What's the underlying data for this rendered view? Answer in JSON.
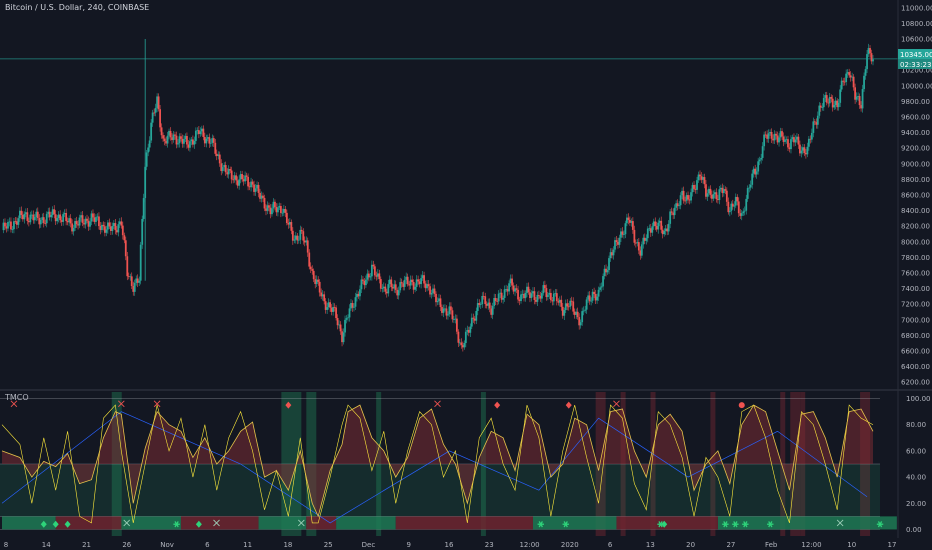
{
  "header": {
    "symbol_title": "Bitcoin / U.S. Dollar, 240, COINBASE"
  },
  "indicator": {
    "name": "TMCO"
  },
  "price_badge": {
    "value": "10345.00",
    "countdown": "02:33:23"
  },
  "colors": {
    "background": "#131722",
    "up_candle": "#26a69a",
    "down_candle": "#ef5350",
    "price_line": "#26a69a",
    "osc_line": "#ffeb3b",
    "osc_fill": "#7a2b33",
    "signal_line": "#2962ff",
    "band_green": "#1f7a55",
    "band_red": "#6e2630",
    "marker_green": "#2ed47a",
    "marker_red": "#ef5350"
  },
  "chart_data": [
    {
      "type": "candlestick",
      "title": "Bitcoin / U.S. Dollar, 240, COINBASE",
      "ylim": [
        6100,
        11100
      ],
      "y_ticks": [
        "11000.00",
        "10800.00",
        "10600.00",
        "10400.00",
        "10200.00",
        "10000.00",
        "9800.00",
        "9600.00",
        "9400.00",
        "9200.00",
        "9000.00",
        "8800.00",
        "8600.00",
        "8400.00",
        "8200.00",
        "8000.00",
        "7800.00",
        "7600.00",
        "7400.00",
        "7200.00",
        "7000.00",
        "6800.00",
        "6600.00",
        "6400.00",
        "6200.00"
      ],
      "x_ticks": [
        "8",
        "14",
        "21",
        "26",
        "Nov",
        "6",
        "11",
        "18",
        "25",
        "Dec",
        "9",
        "16",
        "23",
        "12:00",
        "2020",
        "6",
        "13",
        "20",
        "27",
        "Feb",
        "12:00",
        "10",
        "17"
      ],
      "last_price": 10345.0,
      "close_path": [
        [
          0,
          8150
        ],
        [
          4,
          8350
        ],
        [
          6,
          8280
        ],
        [
          9,
          8350
        ],
        [
          12,
          8220
        ],
        [
          15,
          8300
        ],
        [
          18,
          8150
        ],
        [
          20,
          8250
        ],
        [
          21,
          7600
        ],
        [
          22,
          7450
        ],
        [
          23,
          7500
        ],
        [
          24,
          9000
        ],
        [
          25,
          9500
        ],
        [
          26,
          9800
        ],
        [
          27,
          9300
        ],
        [
          29,
          9350
        ],
        [
          31,
          9250
        ],
        [
          33,
          9400
        ],
        [
          35,
          9300
        ],
        [
          36,
          9100
        ],
        [
          38,
          8850
        ],
        [
          40,
          8800
        ],
        [
          42,
          8750
        ],
        [
          43,
          8600
        ],
        [
          44,
          8500
        ],
        [
          45,
          8400
        ],
        [
          47,
          8450
        ],
        [
          48,
          8200
        ],
        [
          49,
          8050
        ],
        [
          50,
          8100
        ],
        [
          51,
          7950
        ],
        [
          52,
          7600
        ],
        [
          53,
          7400
        ],
        [
          54,
          7250
        ],
        [
          55,
          7150
        ],
        [
          56,
          7050
        ],
        [
          57,
          6800
        ],
        [
          58,
          7050
        ],
        [
          59,
          7250
        ],
        [
          60,
          7400
        ],
        [
          61,
          7500
        ],
        [
          62,
          7700
        ],
        [
          63,
          7500
        ],
        [
          64,
          7400
        ],
        [
          65,
          7450
        ],
        [
          66,
          7350
        ],
        [
          67,
          7500
        ],
        [
          68,
          7450
        ],
        [
          70,
          7500
        ],
        [
          72,
          7400
        ],
        [
          73,
          7200
        ],
        [
          74,
          7150
        ],
        [
          75,
          7100
        ],
        [
          76,
          6950
        ],
        [
          77,
          6650
        ],
        [
          78,
          6800
        ],
        [
          79,
          7050
        ],
        [
          80,
          7200
        ],
        [
          81,
          7250
        ],
        [
          82,
          7150
        ],
        [
          84,
          7350
        ],
        [
          85,
          7450
        ],
        [
          87,
          7300
        ],
        [
          89,
          7350
        ],
        [
          90,
          7250
        ],
        [
          91,
          7400
        ],
        [
          92,
          7300
        ],
        [
          93,
          7250
        ],
        [
          94,
          7150
        ],
        [
          95,
          7200
        ],
        [
          96,
          7100
        ],
        [
          97,
          7000
        ],
        [
          98,
          7200
        ],
        [
          99,
          7350
        ],
        [
          100,
          7300
        ],
        [
          101,
          7600
        ],
        [
          102,
          7850
        ],
        [
          103,
          7950
        ],
        [
          104,
          8150
        ],
        [
          105,
          8300
        ],
        [
          106,
          8050
        ],
        [
          107,
          7900
        ],
        [
          108,
          8050
        ],
        [
          109,
          8250
        ],
        [
          110,
          8200
        ],
        [
          111,
          8100
        ],
        [
          112,
          8350
        ],
        [
          113,
          8400
        ],
        [
          114,
          8650
        ],
        [
          115,
          8500
        ],
        [
          116,
          8700
        ],
        [
          117,
          8900
        ],
        [
          118,
          8600
        ],
        [
          119,
          8650
        ],
        [
          120,
          8550
        ],
        [
          121,
          8700
        ],
        [
          122,
          8400
        ],
        [
          123,
          8500
        ],
        [
          124,
          8350
        ],
        [
          125,
          8600
        ],
        [
          126,
          8900
        ],
        [
          127,
          9050
        ],
        [
          128,
          9350
        ],
        [
          129,
          9400
        ],
        [
          130,
          9300
        ],
        [
          131,
          9350
        ],
        [
          132,
          9250
        ],
        [
          133,
          9300
        ],
        [
          134,
          9200
        ],
        [
          135,
          9150
        ],
        [
          136,
          9500
        ],
        [
          137,
          9700
        ],
        [
          138,
          9800
        ],
        [
          139,
          9850
        ],
        [
          140,
          9700
        ],
        [
          141,
          10100
        ],
        [
          142,
          10200
        ],
        [
          143,
          9850
        ],
        [
          144,
          9800
        ],
        [
          145,
          10400
        ],
        [
          146,
          10350
        ]
      ]
    },
    {
      "type": "line",
      "title": "TMCO",
      "ylim": [
        -5,
        105
      ],
      "y_ticks": [
        "100.00",
        "80.00",
        "60.00",
        "40.00",
        "20.00",
        "0.00"
      ],
      "levels": [
        100,
        50,
        10,
        0
      ],
      "series": [
        {
          "x": [
            0,
            3,
            5,
            7,
            9,
            11,
            13,
            15,
            17,
            19,
            20,
            22,
            24,
            26,
            28,
            30,
            32,
            34,
            36,
            38,
            40,
            42,
            44,
            46,
            48,
            50,
            52,
            53,
            55,
            57,
            58,
            60,
            62,
            64,
            66,
            68,
            70,
            72,
            74,
            76,
            78,
            80,
            82,
            84,
            86,
            88,
            90,
            92,
            94,
            96,
            98,
            100,
            102,
            104,
            106,
            108,
            110,
            112,
            114,
            116,
            118,
            120,
            122,
            124,
            126,
            128,
            130,
            132,
            134,
            136,
            138,
            140,
            142,
            144,
            146
          ],
          "values": [
            60,
            55,
            40,
            52,
            48,
            58,
            35,
            38,
            70,
            90,
            88,
            20,
            62,
            90,
            80,
            75,
            55,
            70,
            50,
            60,
            75,
            82,
            40,
            45,
            30,
            60,
            20,
            10,
            45,
            65,
            90,
            95,
            70,
            60,
            40,
            55,
            85,
            92,
            65,
            50,
            20,
            55,
            75,
            70,
            45,
            88,
            80,
            40,
            50,
            85,
            80,
            45,
            90,
            92,
            60,
            40,
            80,
            88,
            75,
            30,
            50,
            60,
            35,
            80,
            95,
            90,
            60,
            30,
            88,
            90,
            70,
            40,
            90,
            92,
            75
          ]
        },
        {
          "x": [
            0,
            3,
            5,
            7,
            9,
            11,
            13,
            15,
            17,
            19,
            20,
            22,
            24,
            26,
            28,
            30,
            32,
            34,
            36,
            38,
            40,
            42,
            44,
            46,
            48,
            50,
            52,
            53,
            55,
            57,
            58,
            60,
            62,
            64,
            66,
            68,
            70,
            72,
            74,
            76,
            78,
            80,
            82,
            84,
            86,
            88,
            90,
            92,
            94,
            96,
            98,
            100,
            102,
            104,
            106,
            108,
            110,
            112,
            114,
            116,
            118,
            120,
            122,
            124,
            126,
            128,
            130,
            132,
            134,
            136,
            138,
            140,
            142,
            144,
            146
          ],
          "values": [
            80,
            65,
            20,
            70,
            30,
            75,
            10,
            5,
            85,
            95,
            60,
            5,
            50,
            95,
            60,
            85,
            40,
            80,
            30,
            70,
            90,
            60,
            15,
            45,
            10,
            70,
            5,
            5,
            40,
            80,
            95,
            85,
            45,
            75,
            20,
            60,
            90,
            80,
            40,
            60,
            5,
            70,
            85,
            50,
            30,
            95,
            70,
            10,
            60,
            95,
            55,
            20,
            95,
            85,
            35,
            15,
            90,
            80,
            55,
            10,
            55,
            40,
            10,
            90,
            95,
            70,
            30,
            5,
            90,
            80,
            50,
            15,
            95,
            85,
            80
          ]
        },
        {
          "x": [
            0,
            20,
            40,
            55,
            75,
            90,
            100,
            115,
            130,
            145
          ],
          "values": [
            20,
            90,
            50,
            5,
            60,
            30,
            85,
            40,
            75,
            25
          ]
        }
      ],
      "green_zones": [
        [
          22,
          24
        ],
        [
          56,
          60
        ],
        [
          61,
          63
        ],
        [
          75,
          76
        ],
        [
          96,
          97
        ]
      ],
      "red_zones": [
        [
          119,
          121
        ],
        [
          124,
          125
        ],
        [
          130,
          131
        ],
        [
          142,
          143
        ],
        [
          156,
          157
        ],
        [
          158,
          160
        ],
        [
          160,
          161
        ],
        [
          172,
          174
        ]
      ],
      "bottom_band": {
        "green": [
          [
            0,
            9
          ],
          [
            20,
            30
          ],
          [
            43,
            51
          ],
          [
            56,
            66
          ],
          [
            89,
            103
          ],
          [
            120,
            150
          ]
        ],
        "red": [
          [
            9,
            20
          ],
          [
            30,
            43
          ],
          [
            51,
            56
          ],
          [
            66,
            89
          ],
          [
            103,
            120
          ]
        ]
      },
      "markers": {
        "green_diamond": [
          7,
          9,
          11,
          33,
          111
        ],
        "green_star": [
          35,
          108,
          113,
          132,
          145,
          147,
          149,
          154,
          176
        ],
        "red_diamond": [
          48,
          83,
          95
        ],
        "red_circle": [
          124
        ],
        "red_x": [
          2,
          20,
          26,
          73,
          103
        ],
        "green_x": [
          25,
          43,
          60,
          168
        ]
      }
    }
  ]
}
